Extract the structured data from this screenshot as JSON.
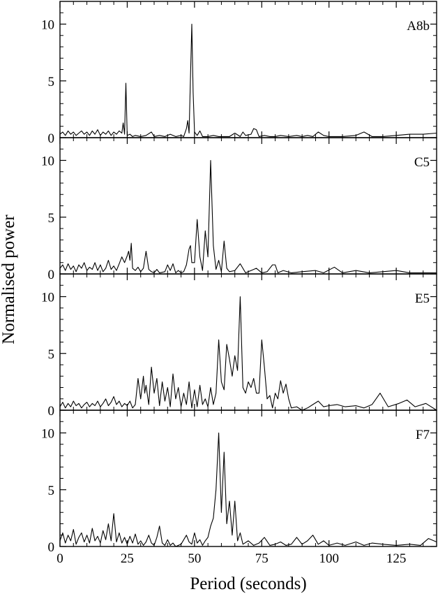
{
  "figure": {
    "xlabel": "Period  (seconds)",
    "ylabel": "Normalised power",
    "x_ticks": [
      "0",
      "25",
      "50",
      "75",
      "100",
      "125"
    ],
    "y_ticks": [
      "0",
      "5",
      "10"
    ]
  },
  "chart_data": [
    {
      "type": "line",
      "panel_label": "A8b",
      "xlim": [
        0,
        140
      ],
      "ylim": [
        0,
        12
      ],
      "points": [
        [
          0,
          0.3
        ],
        [
          1,
          0.5
        ],
        [
          2,
          0.2
        ],
        [
          3,
          0.6
        ],
        [
          4,
          0.3
        ],
        [
          5,
          0.5
        ],
        [
          6,
          0.2
        ],
        [
          7,
          0.4
        ],
        [
          8,
          0.6
        ],
        [
          9,
          0.3
        ],
        [
          10,
          0.5
        ],
        [
          11,
          0.2
        ],
        [
          12,
          0.6
        ],
        [
          13,
          0.3
        ],
        [
          14,
          0.7
        ],
        [
          15,
          0.2
        ],
        [
          16,
          0.5
        ],
        [
          17,
          0.3
        ],
        [
          18,
          0.6
        ],
        [
          19,
          0.2
        ],
        [
          20,
          0.5
        ],
        [
          21,
          0.3
        ],
        [
          22,
          0.6
        ],
        [
          23,
          0.4
        ],
        [
          23.5,
          1.3
        ],
        [
          24,
          0.3
        ],
        [
          24.5,
          4.8
        ],
        [
          25,
          0.2
        ],
        [
          26,
          0.3
        ],
        [
          27,
          0.1
        ],
        [
          28,
          0.2
        ],
        [
          30,
          0.1
        ],
        [
          32,
          0.2
        ],
        [
          34,
          0.5
        ],
        [
          35,
          0.1
        ],
        [
          37,
          0.2
        ],
        [
          39,
          0.1
        ],
        [
          41,
          0.3
        ],
        [
          43,
          0.1
        ],
        [
          45,
          0.2
        ],
        [
          46,
          0.1
        ],
        [
          47,
          0.8
        ],
        [
          47.5,
          1.5
        ],
        [
          48,
          0.4
        ],
        [
          49,
          10.0
        ],
        [
          49.5,
          4.0
        ],
        [
          50,
          0.5
        ],
        [
          51,
          0.2
        ],
        [
          52,
          0.6
        ],
        [
          53,
          0.1
        ],
        [
          55,
          0.1
        ],
        [
          57,
          0.2
        ],
        [
          59,
          0.1
        ],
        [
          61,
          0.1
        ],
        [
          63,
          0.1
        ],
        [
          65,
          0.4
        ],
        [
          67,
          0.1
        ],
        [
          68,
          0.5
        ],
        [
          69,
          0.2
        ],
        [
          71,
          0.3
        ],
        [
          72,
          0.8
        ],
        [
          73,
          0.7
        ],
        [
          74,
          0.1
        ],
        [
          76,
          0.2
        ],
        [
          78,
          0.1
        ],
        [
          80,
          0.1
        ],
        [
          82,
          0.2
        ],
        [
          85,
          0.1
        ],
        [
          88,
          0.2
        ],
        [
          90,
          0.1
        ],
        [
          92,
          0.2
        ],
        [
          94,
          0.1
        ],
        [
          96,
          0.5
        ],
        [
          98,
          0.2
        ],
        [
          100,
          0.1
        ],
        [
          105,
          0.1
        ],
        [
          110,
          0.2
        ],
        [
          113,
          0.5
        ],
        [
          116,
          0.1
        ],
        [
          120,
          0.1
        ],
        [
          125,
          0.2
        ],
        [
          130,
          0.3
        ],
        [
          135,
          0.3
        ],
        [
          140,
          0.4
        ]
      ]
    },
    {
      "type": "line",
      "panel_label": "C5",
      "xlim": [
        0,
        140
      ],
      "ylim": [
        0,
        12
      ],
      "points": [
        [
          0,
          0.5
        ],
        [
          1,
          0.8
        ],
        [
          2,
          0.3
        ],
        [
          3,
          0.9
        ],
        [
          4,
          0.4
        ],
        [
          5,
          0.7
        ],
        [
          6,
          0.2
        ],
        [
          7,
          0.8
        ],
        [
          8,
          0.5
        ],
        [
          9,
          1.0
        ],
        [
          10,
          0.3
        ],
        [
          11,
          0.6
        ],
        [
          12,
          0.4
        ],
        [
          13,
          1.0
        ],
        [
          14,
          0.3
        ],
        [
          15,
          0.8
        ],
        [
          16,
          0.2
        ],
        [
          17,
          0.5
        ],
        [
          18,
          1.2
        ],
        [
          19,
          0.4
        ],
        [
          20,
          0.7
        ],
        [
          21,
          0.3
        ],
        [
          22,
          0.9
        ],
        [
          23,
          1.5
        ],
        [
          24,
          1.0
        ],
        [
          25,
          1.6
        ],
        [
          25.5,
          2.0
        ],
        [
          26,
          1.2
        ],
        [
          26.5,
          2.7
        ],
        [
          27,
          0.5
        ],
        [
          28,
          0.3
        ],
        [
          29,
          0.6
        ],
        [
          30,
          0.2
        ],
        [
          31,
          0.5
        ],
        [
          32,
          2.0
        ],
        [
          33,
          0.4
        ],
        [
          34,
          0.2
        ],
        [
          35,
          0.1
        ],
        [
          36,
          0.4
        ],
        [
          37,
          0.1
        ],
        [
          39,
          0.2
        ],
        [
          40,
          0.8
        ],
        [
          41,
          0.3
        ],
        [
          42,
          0.9
        ],
        [
          43,
          0.1
        ],
        [
          44,
          0.3
        ],
        [
          45,
          0.1
        ],
        [
          46,
          0.2
        ],
        [
          47,
          0.8
        ],
        [
          48,
          2.2
        ],
        [
          48.5,
          2.5
        ],
        [
          49,
          1.0
        ],
        [
          50,
          1.0
        ],
        [
          51,
          4.8
        ],
        [
          52,
          1.5
        ],
        [
          53,
          0.3
        ],
        [
          54,
          3.8
        ],
        [
          55,
          1.5
        ],
        [
          56,
          10.0
        ],
        [
          57,
          2.5
        ],
        [
          58,
          0.4
        ],
        [
          59,
          1.2
        ],
        [
          60,
          0.2
        ],
        [
          61,
          2.9
        ],
        [
          62,
          0.5
        ],
        [
          63,
          0.2
        ],
        [
          65,
          0.3
        ],
        [
          67,
          0.9
        ],
        [
          69,
          0.1
        ],
        [
          71,
          0.3
        ],
        [
          73,
          0.5
        ],
        [
          75,
          0.1
        ],
        [
          77,
          0.2
        ],
        [
          79,
          0.8
        ],
        [
          80,
          0.8
        ],
        [
          81,
          0.1
        ],
        [
          83,
          0.3
        ],
        [
          86,
          0.1
        ],
        [
          90,
          0.2
        ],
        [
          95,
          0.3
        ],
        [
          98,
          0.1
        ],
        [
          102,
          0.6
        ],
        [
          105,
          0.1
        ],
        [
          110,
          0.3
        ],
        [
          115,
          0.1
        ],
        [
          120,
          0.2
        ],
        [
          125,
          0.3
        ],
        [
          130,
          0.1
        ],
        [
          135,
          0.1
        ],
        [
          140,
          0.1
        ]
      ]
    },
    {
      "type": "line",
      "panel_label": "E5",
      "xlim": [
        0,
        140
      ],
      "ylim": [
        0,
        12
      ],
      "points": [
        [
          0,
          0.3
        ],
        [
          1,
          0.7
        ],
        [
          2,
          0.2
        ],
        [
          3,
          0.6
        ],
        [
          4,
          0.3
        ],
        [
          5,
          0.8
        ],
        [
          6,
          0.4
        ],
        [
          7,
          0.6
        ],
        [
          8,
          0.2
        ],
        [
          9,
          0.5
        ],
        [
          10,
          0.7
        ],
        [
          11,
          0.3
        ],
        [
          12,
          0.6
        ],
        [
          13,
          0.4
        ],
        [
          14,
          0.8
        ],
        [
          15,
          0.3
        ],
        [
          16,
          0.6
        ],
        [
          17,
          1.0
        ],
        [
          18,
          0.4
        ],
        [
          19,
          0.7
        ],
        [
          20,
          1.2
        ],
        [
          21,
          0.5
        ],
        [
          22,
          0.8
        ],
        [
          23,
          0.3
        ],
        [
          24,
          0.6
        ],
        [
          25,
          0.4
        ],
        [
          26,
          0.8
        ],
        [
          27,
          0.2
        ],
        [
          28,
          0.5
        ],
        [
          29,
          2.8
        ],
        [
          30,
          1.0
        ],
        [
          31,
          3.0
        ],
        [
          31.5,
          1.5
        ],
        [
          32,
          2.2
        ],
        [
          33,
          0.5
        ],
        [
          34,
          3.8
        ],
        [
          35,
          1.5
        ],
        [
          36,
          2.8
        ],
        [
          37,
          0.4
        ],
        [
          38,
          2.5
        ],
        [
          39,
          0.8
        ],
        [
          40,
          2.0
        ],
        [
          41,
          0.3
        ],
        [
          42,
          3.2
        ],
        [
          43,
          1.0
        ],
        [
          44,
          2.0
        ],
        [
          45,
          0.3
        ],
        [
          46,
          1.5
        ],
        [
          47,
          0.5
        ],
        [
          48,
          2.5
        ],
        [
          49,
          0.2
        ],
        [
          50,
          1.8
        ],
        [
          51,
          0.3
        ],
        [
          52,
          2.2
        ],
        [
          53,
          0.5
        ],
        [
          54,
          1.0
        ],
        [
          55,
          0.3
        ],
        [
          56,
          2.0
        ],
        [
          57,
          0.5
        ],
        [
          58,
          1.5
        ],
        [
          59,
          6.2
        ],
        [
          60,
          2.5
        ],
        [
          61,
          1.8
        ],
        [
          62,
          5.8
        ],
        [
          63,
          4.5
        ],
        [
          64,
          3.0
        ],
        [
          65,
          4.8
        ],
        [
          66,
          3.5
        ],
        [
          67,
          10.0
        ],
        [
          68,
          2.0
        ],
        [
          69,
          1.5
        ],
        [
          70,
          2.5
        ],
        [
          71,
          2.0
        ],
        [
          72,
          2.8
        ],
        [
          73,
          1.5
        ],
        [
          74,
          1.5
        ],
        [
          75,
          6.2
        ],
        [
          76,
          3.8
        ],
        [
          77,
          1.0
        ],
        [
          78,
          1.3
        ],
        [
          79,
          0.2
        ],
        [
          80,
          1.5
        ],
        [
          81,
          1.0
        ],
        [
          82,
          2.6
        ],
        [
          83,
          1.5
        ],
        [
          84,
          2.3
        ],
        [
          85,
          1.0
        ],
        [
          86,
          0.2
        ],
        [
          88,
          0.3
        ],
        [
          90,
          0.0
        ],
        [
          92,
          0.2
        ],
        [
          94,
          0.5
        ],
        [
          96,
          0.8
        ],
        [
          98,
          0.3
        ],
        [
          100,
          0.4
        ],
        [
          103,
          0.5
        ],
        [
          106,
          0.3
        ],
        [
          110,
          0.4
        ],
        [
          113,
          0.2
        ],
        [
          116,
          0.5
        ],
        [
          119,
          1.5
        ],
        [
          122,
          0.3
        ],
        [
          126,
          0.6
        ],
        [
          129,
          0.9
        ],
        [
          132,
          0.3
        ],
        [
          136,
          0.6
        ],
        [
          140,
          0.0
        ]
      ]
    },
    {
      "type": "line",
      "panel_label": "F7",
      "xlim": [
        0,
        140
      ],
      "ylim": [
        0,
        12
      ],
      "points": [
        [
          0,
          0.5
        ],
        [
          1,
          1.2
        ],
        [
          2,
          0.3
        ],
        [
          3,
          1.0
        ],
        [
          4,
          0.5
        ],
        [
          5,
          1.5
        ],
        [
          6,
          0.2
        ],
        [
          7,
          0.8
        ],
        [
          8,
          1.2
        ],
        [
          9,
          0.4
        ],
        [
          10,
          1.0
        ],
        [
          11,
          0.3
        ],
        [
          12,
          1.6
        ],
        [
          13,
          0.5
        ],
        [
          14,
          0.9
        ],
        [
          15,
          0.3
        ],
        [
          16,
          1.4
        ],
        [
          17,
          0.6
        ],
        [
          18,
          2.0
        ],
        [
          19,
          0.5
        ],
        [
          20,
          2.9
        ],
        [
          21,
          0.4
        ],
        [
          22,
          1.2
        ],
        [
          23,
          0.3
        ],
        [
          24,
          0.8
        ],
        [
          25,
          0.2
        ],
        [
          26,
          0.9
        ],
        [
          27,
          0.3
        ],
        [
          28,
          1.1
        ],
        [
          29,
          0.2
        ],
        [
          30,
          0.5
        ],
        [
          31,
          0.1
        ],
        [
          32,
          0.4
        ],
        [
          33,
          1.0
        ],
        [
          34,
          0.3
        ],
        [
          35,
          0.1
        ],
        [
          36,
          0.8
        ],
        [
          37,
          1.8
        ],
        [
          38,
          0.3
        ],
        [
          39,
          0.1
        ],
        [
          40,
          0.6
        ],
        [
          41,
          0.1
        ],
        [
          42,
          0.3
        ],
        [
          43,
          0.0
        ],
        [
          45,
          0.2
        ],
        [
          47,
          1.0
        ],
        [
          48,
          0.4
        ],
        [
          49,
          0.2
        ],
        [
          50,
          1.2
        ],
        [
          51,
          0.3
        ],
        [
          52,
          0.6
        ],
        [
          53,
          0.1
        ],
        [
          54,
          0.5
        ],
        [
          55,
          0.8
        ],
        [
          56,
          1.8
        ],
        [
          57,
          2.5
        ],
        [
          58,
          5.0
        ],
        [
          59,
          10.0
        ],
        [
          60,
          3.0
        ],
        [
          61,
          8.3
        ],
        [
          62,
          2.0
        ],
        [
          63,
          4.0
        ],
        [
          64,
          1.0
        ],
        [
          65,
          4.0
        ],
        [
          66,
          0.5
        ],
        [
          67,
          1.2
        ],
        [
          68,
          0.2
        ],
        [
          70,
          0.5
        ],
        [
          72,
          0.1
        ],
        [
          74,
          0.3
        ],
        [
          76,
          0.8
        ],
        [
          78,
          0.1
        ],
        [
          80,
          0.2
        ],
        [
          82,
          0.4
        ],
        [
          84,
          0.1
        ],
        [
          86,
          0.2
        ],
        [
          88,
          0.8
        ],
        [
          90,
          0.2
        ],
        [
          92,
          0.5
        ],
        [
          94,
          1.0
        ],
        [
          96,
          0.2
        ],
        [
          98,
          0.5
        ],
        [
          100,
          0.1
        ],
        [
          103,
          0.3
        ],
        [
          106,
          0.1
        ],
        [
          110,
          0.4
        ],
        [
          113,
          0.1
        ],
        [
          116,
          0.3
        ],
        [
          120,
          0.2
        ],
        [
          125,
          0.1
        ],
        [
          130,
          0.2
        ],
        [
          134,
          0.1
        ],
        [
          137,
          0.7
        ],
        [
          140,
          0.4
        ]
      ]
    }
  ]
}
